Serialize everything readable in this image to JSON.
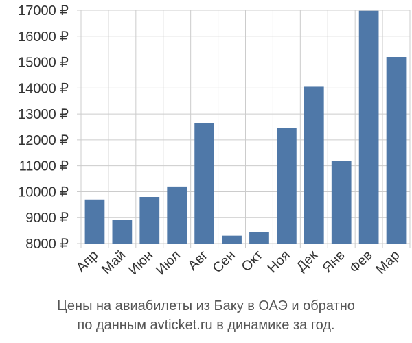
{
  "chart_data": {
    "type": "bar",
    "categories": [
      "Апр",
      "Май",
      "Июн",
      "Июл",
      "Авг",
      "Сен",
      "Окт",
      "Ноя",
      "Дек",
      "Янв",
      "Фев",
      "Мар"
    ],
    "values": [
      9700,
      8900,
      9800,
      10200,
      12650,
      8300,
      8450,
      12450,
      14050,
      11200,
      16980,
      15200
    ],
    "y_ticks": [
      8000,
      9000,
      10000,
      11000,
      12000,
      13000,
      14000,
      15000,
      16000,
      17000
    ],
    "y_tick_suffix": " ₽",
    "ylim": [
      8000,
      17000
    ],
    "grid": true,
    "bar_color": "#4f78a8",
    "grid_color": "#cccccc"
  },
  "caption": {
    "line1": "Цены на авиабилеты из Баку в ОАЭ и обратно",
    "line2": "по данным avticket.ru в динамике за год."
  }
}
